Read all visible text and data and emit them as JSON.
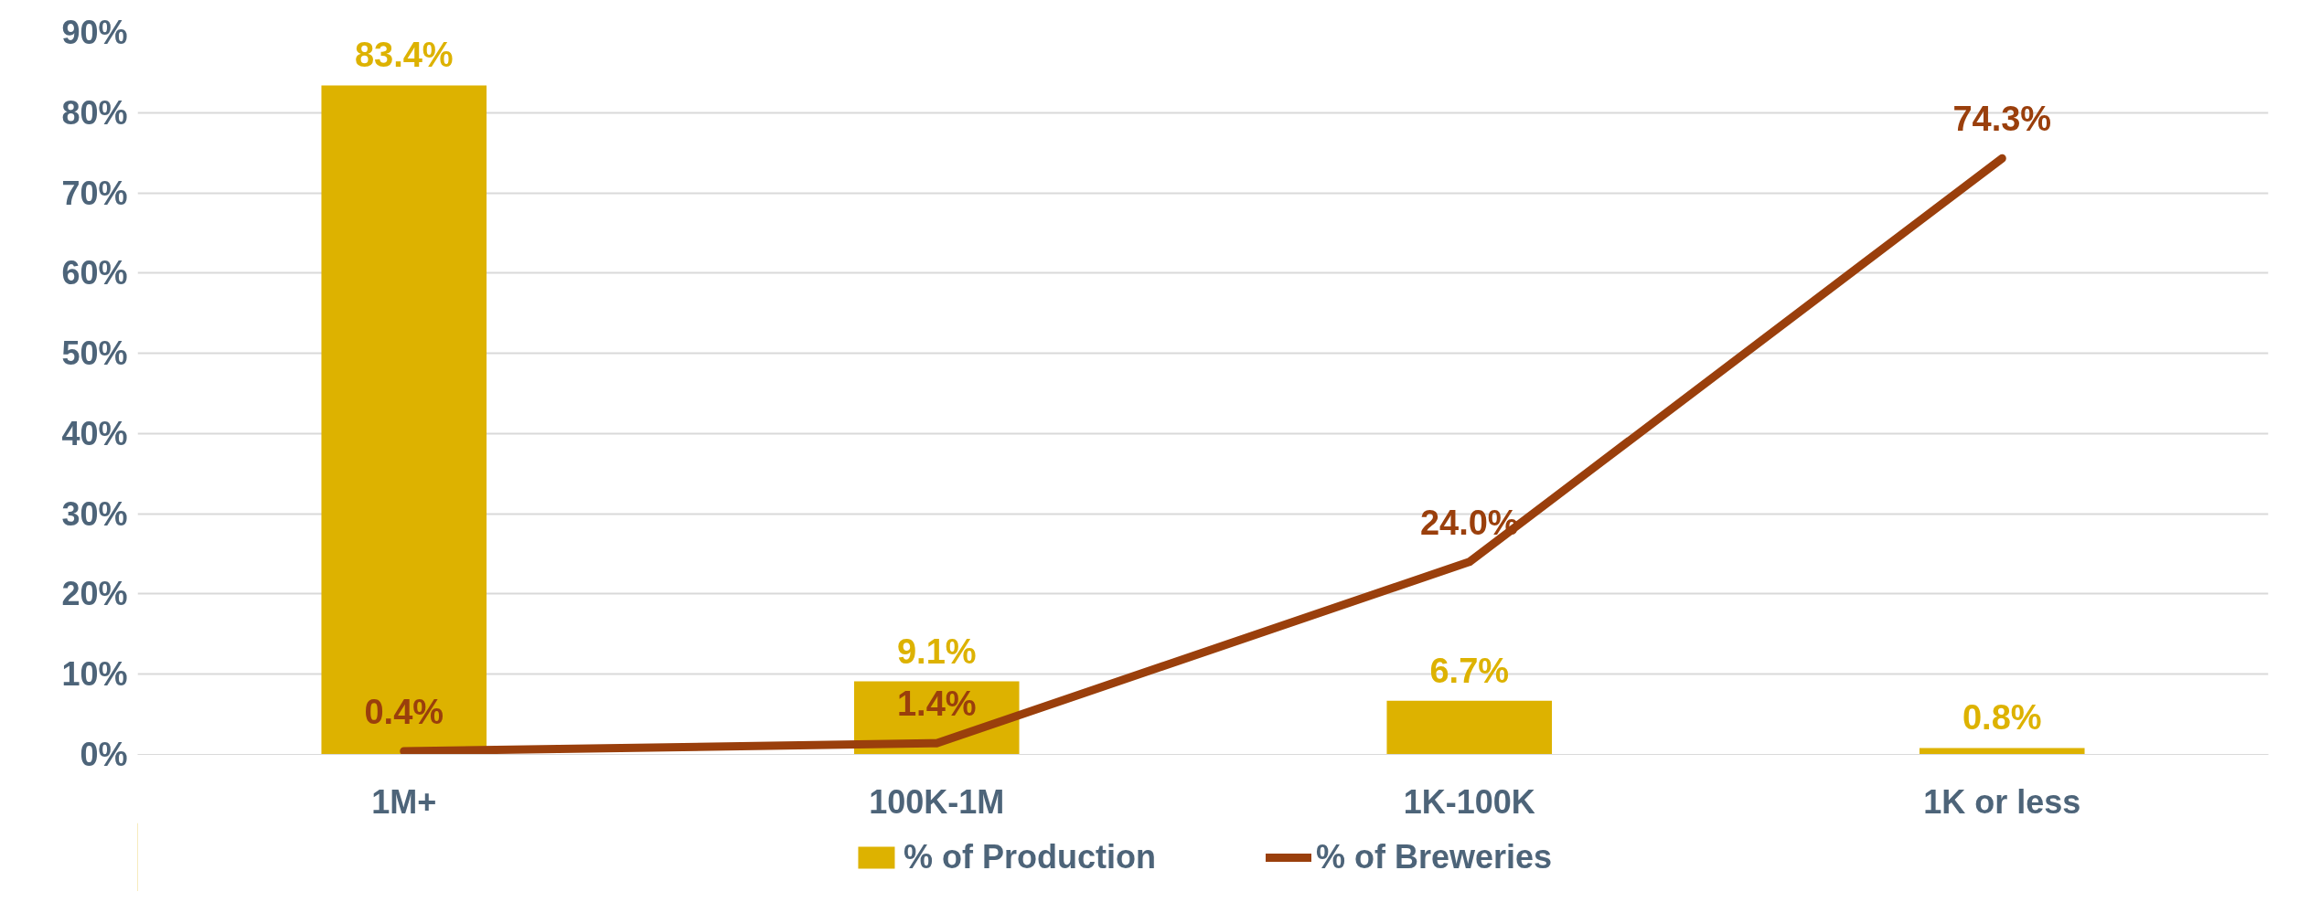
{
  "chart_data": {
    "type": "bar",
    "categories": [
      "1M+",
      "100K-1M",
      "1K-100K",
      "1K or less"
    ],
    "series": [
      {
        "name": "% of Production",
        "color": "#ddb200",
        "values": [
          83.4,
          9.1,
          6.7,
          0.8
        ],
        "value_labels": [
          "83.4%",
          "9.1%",
          "6.7%",
          "0.8%"
        ]
      },
      {
        "name": "% of Breweries",
        "type": "line",
        "color": "#9a3f0c",
        "values": [
          0.4,
          1.4,
          24.0,
          74.3
        ],
        "value_labels": [
          "0.4%",
          "1.4%",
          "24.0%",
          "74.3%"
        ]
      }
    ],
    "ylim": [
      0,
      90
    ],
    "yticks": [
      {
        "value": 0,
        "label": "0%"
      },
      {
        "value": 10,
        "label": "10%"
      },
      {
        "value": 20,
        "label": "20%"
      },
      {
        "value": 30,
        "label": "30%"
      },
      {
        "value": 40,
        "label": "40%"
      },
      {
        "value": 50,
        "label": "50%"
      },
      {
        "value": 60,
        "label": "60%"
      },
      {
        "value": 70,
        "label": "70%"
      },
      {
        "value": 80,
        "label": "80%"
      },
      {
        "value": 90,
        "label": "90%"
      }
    ],
    "grid": "y",
    "legend": "bottom",
    "marker": "none",
    "line_style": "solid"
  }
}
